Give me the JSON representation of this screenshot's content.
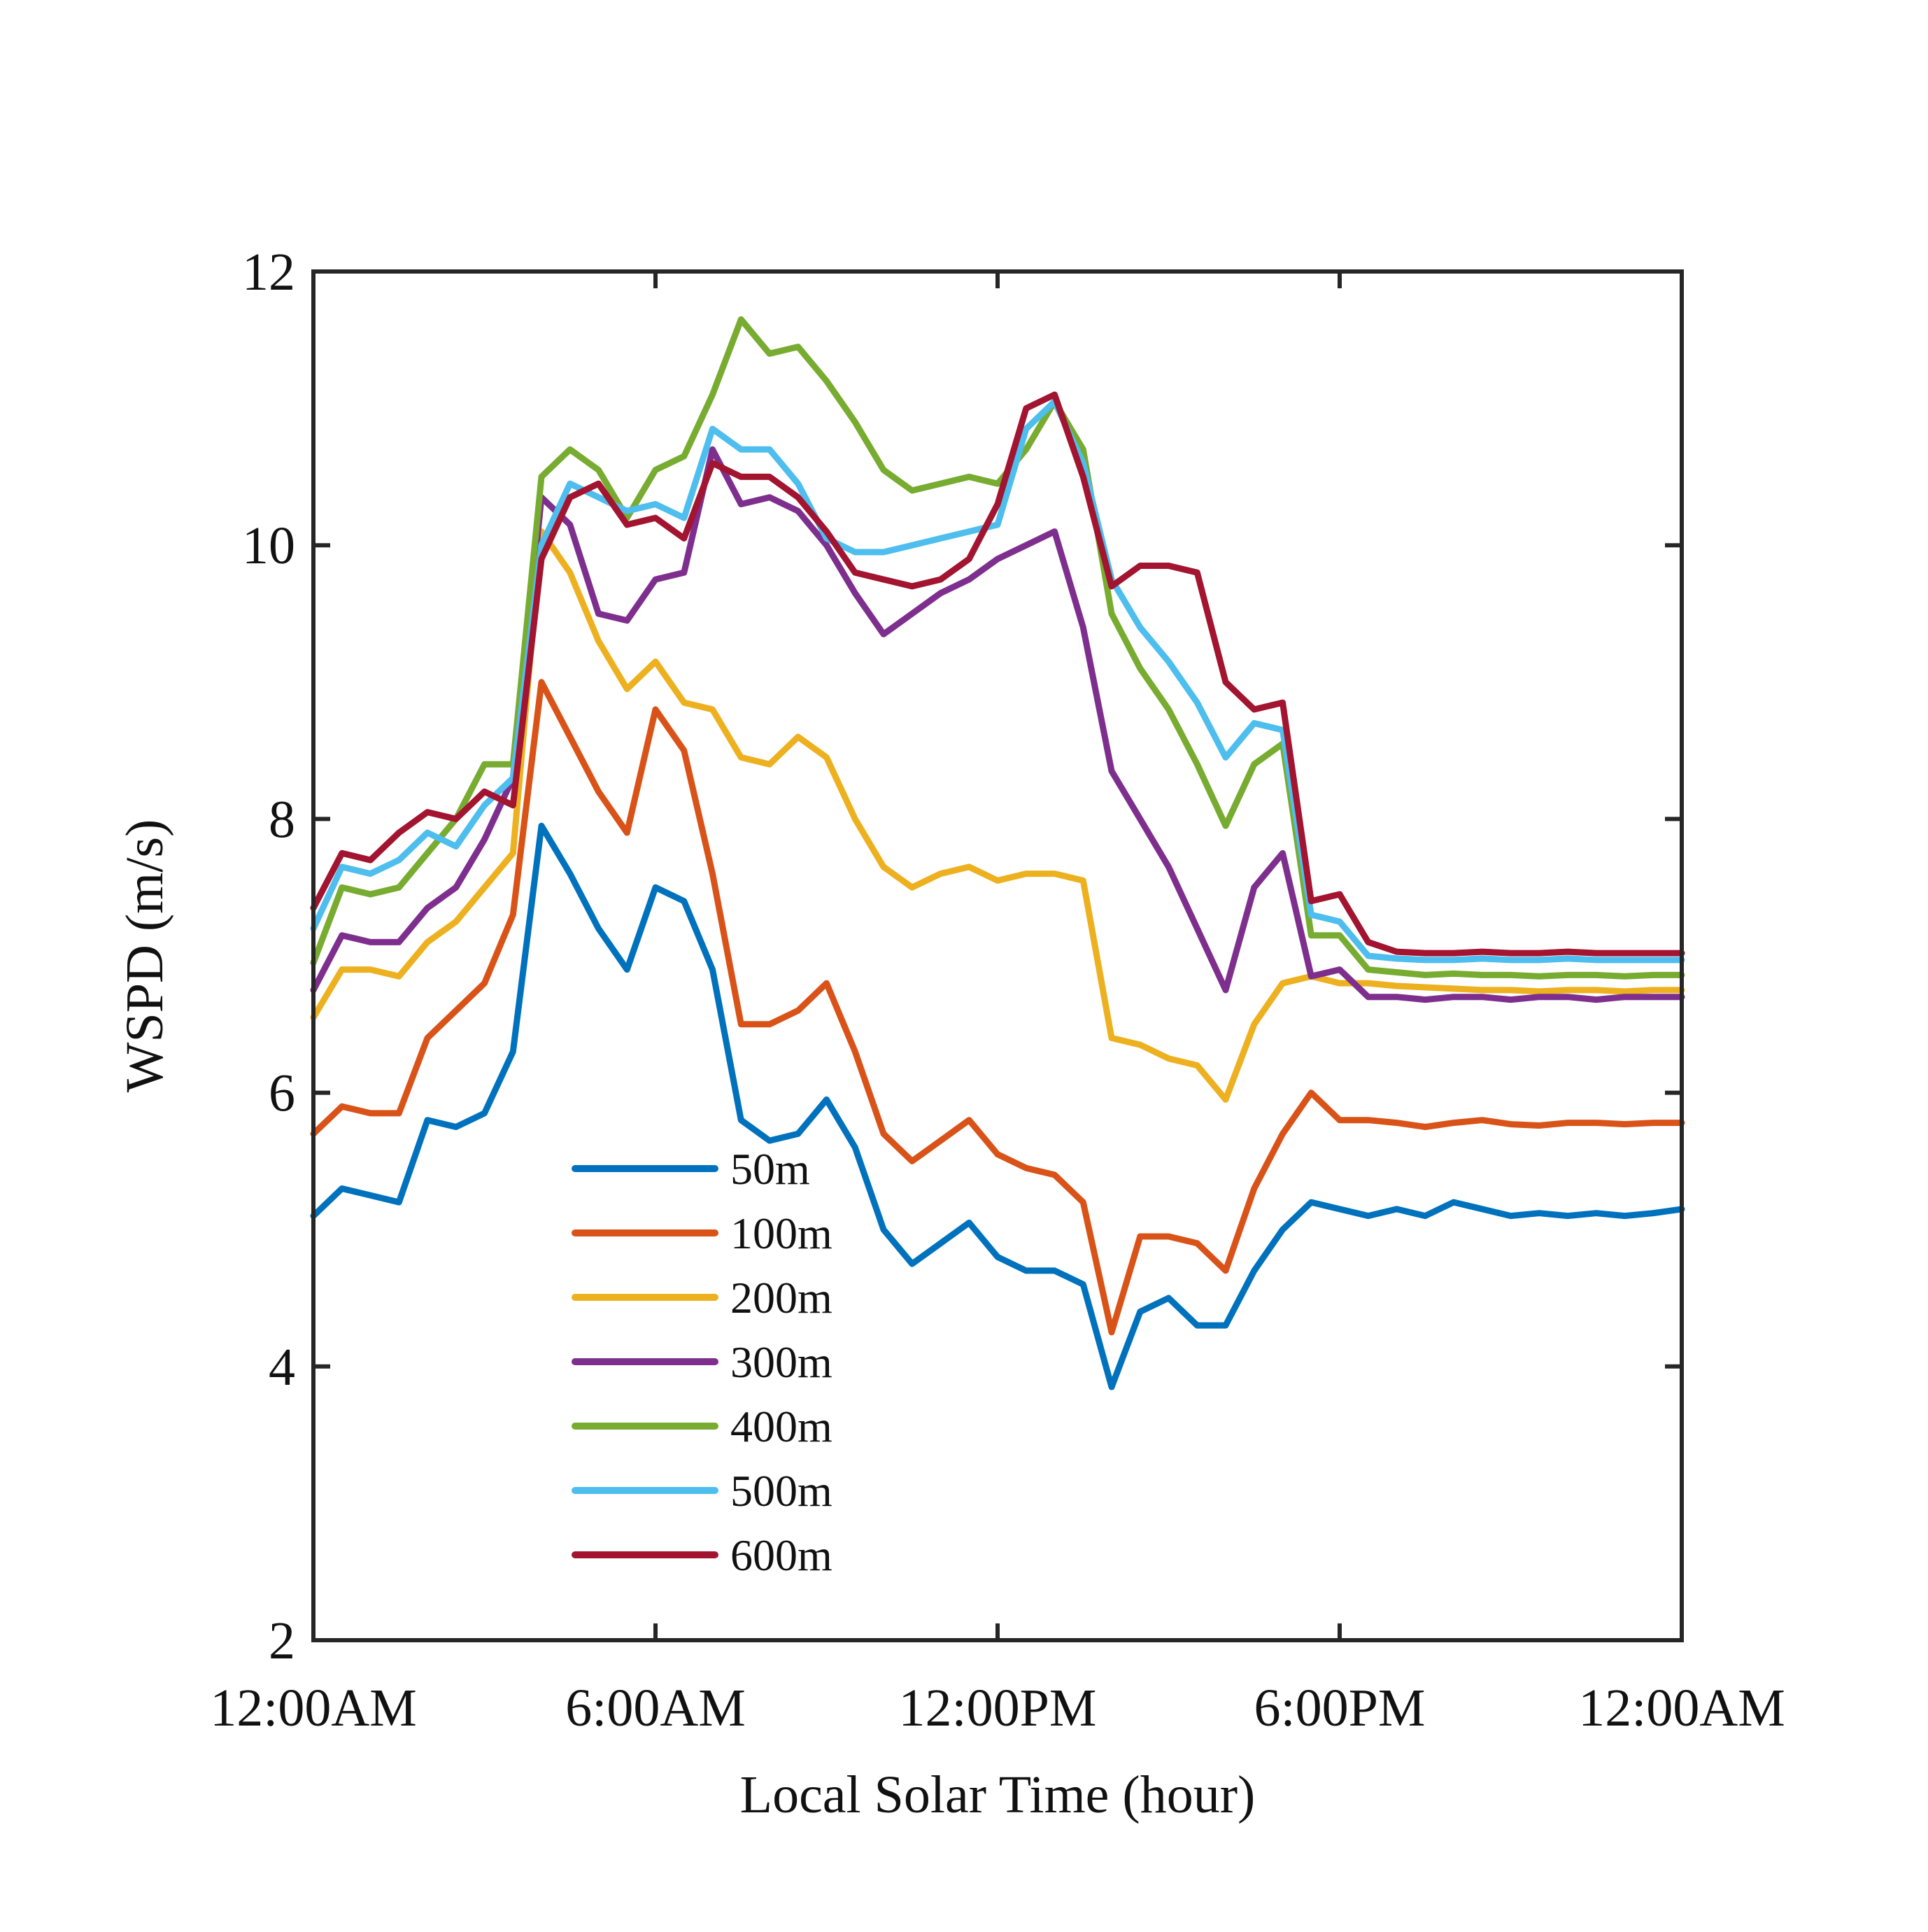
{
  "chart_data": {
    "type": "line",
    "title": "",
    "xlabel": "Local Solar Time (hour)",
    "ylabel": "WSPD (m/s)",
    "xlim": [
      0,
      24
    ],
    "ylim": [
      2,
      12
    ],
    "xticks": [
      0,
      6,
      12,
      18,
      24
    ],
    "xtick_labels": [
      "12:00AM",
      "6:00AM",
      "12:00PM",
      "6:00PM",
      "12:00AM"
    ],
    "yticks": [
      2,
      4,
      6,
      8,
      10,
      12
    ],
    "ytick_labels": [
      "2",
      "4",
      "6",
      "8",
      "10",
      "12"
    ],
    "grid": false,
    "legend_position": "lower-left",
    "x": [
      0,
      0.5,
      1,
      1.5,
      2,
      2.5,
      3,
      3.5,
      4,
      4.5,
      5,
      5.5,
      6,
      6.5,
      7,
      7.5,
      8,
      8.5,
      9,
      9.5,
      10,
      10.5,
      11,
      11.5,
      12,
      12.5,
      13,
      13.5,
      14,
      14.5,
      15,
      15.5,
      16,
      16.5,
      17,
      17.5,
      18,
      18.5,
      19,
      19.5,
      20,
      20.5,
      21,
      21.5,
      22,
      22.5,
      23,
      23.5,
      24
    ],
    "series": [
      {
        "name": "50m",
        "color": "#0072BD",
        "values": [
          5.1,
          5.3,
          5.25,
          5.2,
          5.8,
          5.75,
          5.85,
          6.3,
          7.95,
          7.6,
          7.2,
          6.9,
          7.5,
          7.4,
          6.9,
          5.8,
          5.65,
          5.7,
          5.95,
          5.6,
          5.0,
          4.75,
          4.9,
          5.05,
          4.8,
          4.7,
          4.7,
          4.6,
          3.85,
          4.4,
          4.5,
          4.3,
          4.3,
          4.7,
          5.0,
          5.2,
          5.15,
          5.1,
          5.15,
          5.1,
          5.2,
          5.15,
          5.1,
          5.12,
          5.1,
          5.12,
          5.1,
          5.12,
          5.15
        ]
      },
      {
        "name": "100m",
        "color": "#D95319",
        "values": [
          5.7,
          5.9,
          5.85,
          5.85,
          6.4,
          6.6,
          6.8,
          7.3,
          9.0,
          8.6,
          8.2,
          7.9,
          8.8,
          8.5,
          7.6,
          6.5,
          6.5,
          6.6,
          6.8,
          6.3,
          5.7,
          5.5,
          5.65,
          5.8,
          5.55,
          5.45,
          5.4,
          5.2,
          4.25,
          4.95,
          4.95,
          4.9,
          4.7,
          5.3,
          5.7,
          6.0,
          5.8,
          5.8,
          5.78,
          5.75,
          5.78,
          5.8,
          5.77,
          5.76,
          5.78,
          5.78,
          5.77,
          5.78,
          5.78
        ]
      },
      {
        "name": "200m",
        "color": "#EDB120",
        "values": [
          6.55,
          6.9,
          6.9,
          6.85,
          7.1,
          7.25,
          7.5,
          7.75,
          10.1,
          9.8,
          9.3,
          8.95,
          9.15,
          8.85,
          8.8,
          8.45,
          8.4,
          8.6,
          8.45,
          8.0,
          7.65,
          7.5,
          7.6,
          7.65,
          7.55,
          7.6,
          7.6,
          7.55,
          6.4,
          6.35,
          6.25,
          6.2,
          5.95,
          6.5,
          6.8,
          6.85,
          6.8,
          6.8,
          6.78,
          6.77,
          6.76,
          6.75,
          6.75,
          6.74,
          6.75,
          6.75,
          6.74,
          6.75,
          6.75
        ]
      },
      {
        "name": "300m",
        "color": "#7E2F8E",
        "values": [
          6.75,
          7.15,
          7.1,
          7.1,
          7.35,
          7.5,
          7.85,
          8.3,
          10.35,
          10.15,
          9.5,
          9.45,
          9.75,
          9.8,
          10.7,
          10.3,
          10.35,
          10.25,
          10.0,
          9.65,
          9.35,
          9.5,
          9.65,
          9.75,
          9.9,
          10.0,
          10.1,
          9.4,
          8.35,
          8.0,
          7.65,
          7.2,
          6.75,
          7.5,
          7.75,
          6.85,
          6.9,
          6.7,
          6.7,
          6.68,
          6.7,
          6.7,
          6.68,
          6.7,
          6.7,
          6.68,
          6.7,
          6.7,
          6.7
        ]
      },
      {
        "name": "400m",
        "color": "#77AC30",
        "values": [
          6.95,
          7.5,
          7.45,
          7.5,
          7.75,
          8.0,
          8.4,
          8.4,
          10.5,
          10.7,
          10.55,
          10.2,
          10.55,
          10.65,
          11.1,
          11.65,
          11.4,
          11.45,
          11.2,
          10.9,
          10.55,
          10.4,
          10.45,
          10.5,
          10.45,
          10.7,
          11.05,
          10.7,
          9.5,
          9.1,
          8.8,
          8.4,
          7.95,
          8.4,
          8.55,
          7.15,
          7.15,
          6.9,
          6.88,
          6.86,
          6.87,
          6.86,
          6.86,
          6.85,
          6.86,
          6.86,
          6.85,
          6.86,
          6.86
        ]
      },
      {
        "name": "500m",
        "color": "#4DBEEE",
        "values": [
          7.2,
          7.65,
          7.6,
          7.7,
          7.9,
          7.8,
          8.1,
          8.3,
          10.0,
          10.45,
          10.35,
          10.25,
          10.3,
          10.2,
          10.85,
          10.7,
          10.7,
          10.45,
          10.05,
          9.95,
          9.95,
          10.0,
          10.05,
          10.1,
          10.15,
          10.85,
          11.05,
          10.6,
          9.75,
          9.4,
          9.15,
          8.85,
          8.45,
          8.7,
          8.65,
          7.3,
          7.25,
          7.0,
          6.98,
          6.97,
          6.97,
          6.98,
          6.97,
          6.97,
          6.98,
          6.97,
          6.97,
          6.97,
          6.97
        ]
      },
      {
        "name": "600m",
        "color": "#A2142F",
        "values": [
          7.35,
          7.75,
          7.7,
          7.9,
          8.05,
          8.0,
          8.2,
          8.1,
          9.9,
          10.35,
          10.45,
          10.15,
          10.2,
          10.05,
          10.6,
          10.5,
          10.5,
          10.35,
          10.1,
          9.8,
          9.75,
          9.7,
          9.75,
          9.9,
          10.3,
          11.0,
          11.1,
          10.5,
          9.7,
          9.85,
          9.85,
          9.8,
          9.0,
          8.8,
          8.85,
          7.4,
          7.45,
          7.1,
          7.03,
          7.02,
          7.02,
          7.03,
          7.02,
          7.02,
          7.03,
          7.02,
          7.02,
          7.02,
          7.02
        ]
      }
    ]
  }
}
